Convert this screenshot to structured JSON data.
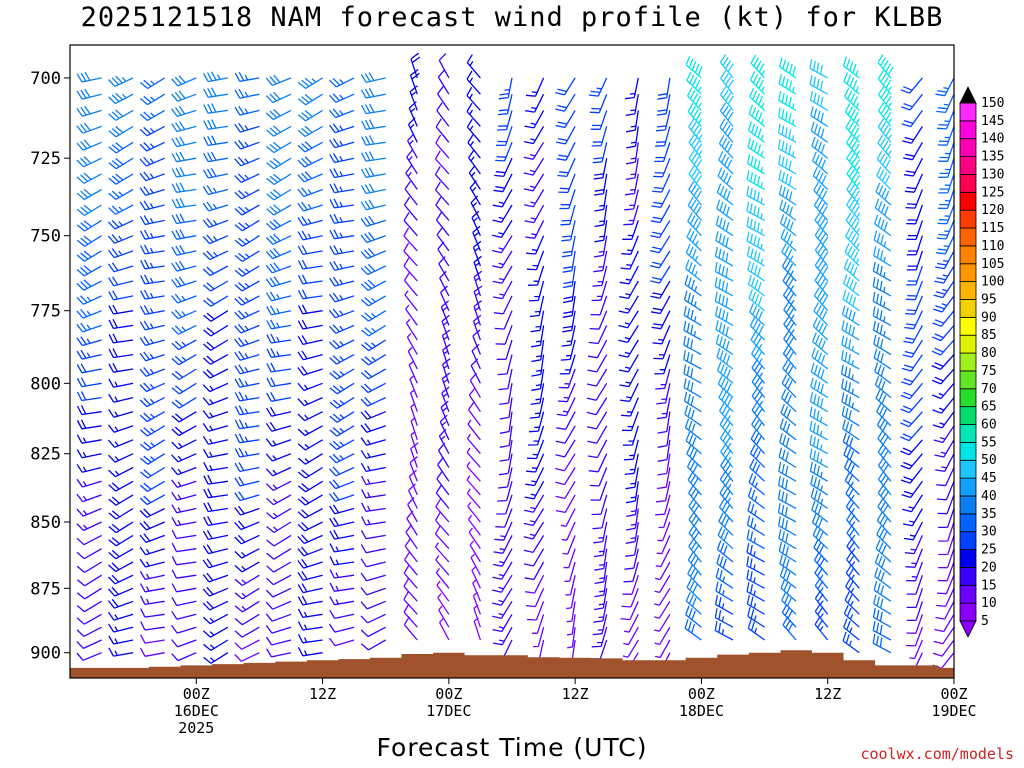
{
  "chart_data": {
    "type": "wind_barb_time_height",
    "title": "2025121518 NAM forecast wind profile (kt) for KLBB",
    "xlabel": "Forecast Time (UTC)",
    "ylabel": "",
    "credit": "coolwx.com/models",
    "y_axis": {
      "unit": "hPa",
      "range": [
        910,
        690
      ],
      "ticks": [
        700,
        725,
        750,
        775,
        800,
        825,
        850,
        875,
        900
      ]
    },
    "x_axis": {
      "range_hours_from_start": [
        -6,
        78
      ],
      "ticks": [
        {
          "hour": 6,
          "lines": [
            "00Z",
            "16DEC",
            "2025"
          ]
        },
        {
          "hour": 18,
          "lines": [
            "12Z"
          ]
        },
        {
          "hour": 30,
          "lines": [
            "00Z",
            "17DEC"
          ]
        },
        {
          "hour": 42,
          "lines": [
            "12Z"
          ]
        },
        {
          "hour": 54,
          "lines": [
            "00Z",
            "18DEC"
          ]
        },
        {
          "hour": 66,
          "lines": [
            "12Z"
          ]
        },
        {
          "hour": 78,
          "lines": [
            "00Z",
            "19DEC"
          ]
        }
      ]
    },
    "colorbar": {
      "levels": [
        5,
        10,
        15,
        20,
        25,
        30,
        35,
        40,
        45,
        50,
        55,
        60,
        65,
        70,
        75,
        80,
        85,
        90,
        95,
        100,
        105,
        110,
        115,
        120,
        125,
        130,
        135,
        140,
        145,
        150
      ],
      "colors": [
        "#8a00ff",
        "#6a00ff",
        "#3a00ff",
        "#0000f0",
        "#0040ff",
        "#0064ff",
        "#0a7ff0",
        "#14a0ff",
        "#1ec8ff",
        "#00e6e6",
        "#00e6b4",
        "#00dc6e",
        "#28dc28",
        "#64e628",
        "#a0f01e",
        "#dcf000",
        "#ffff00",
        "#f0d200",
        "#ffb400",
        "#ff9600",
        "#ff8200",
        "#ff6400",
        "#ff3c00",
        "#ff0000",
        "#ff0050",
        "#ff0082",
        "#ff00b4",
        "#ff00dc",
        "#ff28ff",
        "#000000"
      ]
    },
    "terrain_color": "#a0522d",
    "terrain_pressure": {
      "hours": [
        0,
        6,
        12,
        18,
        24,
        28,
        30,
        33,
        36,
        40,
        44,
        48,
        52,
        56,
        60,
        62,
        64,
        66,
        68,
        70,
        72,
        76,
        78
      ],
      "pressure": [
        906,
        905,
        904,
        903,
        902,
        900,
        900,
        901,
        901,
        902,
        902,
        903,
        903,
        901,
        900,
        899,
        899,
        900,
        902,
        904,
        905,
        905,
        906
      ]
    },
    "wind_profile": {
      "time_step_hours": 3,
      "pressure_levels": [
        700,
        705,
        710,
        715,
        720,
        725,
        730,
        735,
        740,
        745,
        750,
        755,
        760,
        765,
        770,
        775,
        780,
        785,
        790,
        795,
        800,
        805,
        810,
        815,
        820,
        825,
        830,
        835,
        840,
        845,
        850,
        855,
        860,
        865,
        870,
        875,
        880,
        885,
        890,
        895,
        900
      ],
      "regimes": [
        {
          "hours": [
            -6,
            24
          ],
          "direction_deg": 250,
          "speed_kt": [
            12,
            30
          ]
        },
        {
          "hours": [
            27,
            33
          ],
          "direction_deg": 330,
          "speed_kt": [
            5,
            15
          ]
        },
        {
          "hours": [
            36,
            51
          ],
          "direction_deg": 200,
          "speed_kt": [
            8,
            20
          ]
        },
        {
          "hours": [
            54,
            72
          ],
          "direction_deg": 310,
          "speed_kt": [
            25,
            45
          ]
        },
        {
          "hours": [
            75,
            78
          ],
          "direction_deg": 210,
          "speed_kt": [
            10,
            25
          ]
        }
      ]
    }
  }
}
